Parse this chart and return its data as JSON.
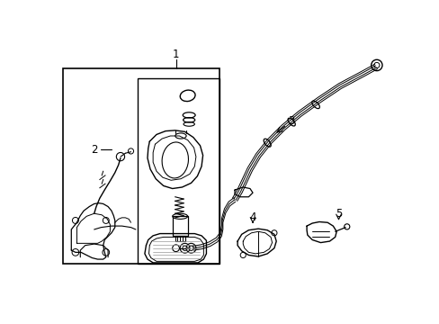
{
  "background_color": "#ffffff",
  "line_color": "#000000",
  "fig_width": 4.89,
  "fig_height": 3.6,
  "dpi": 100,
  "label_fontsize": 8.5
}
